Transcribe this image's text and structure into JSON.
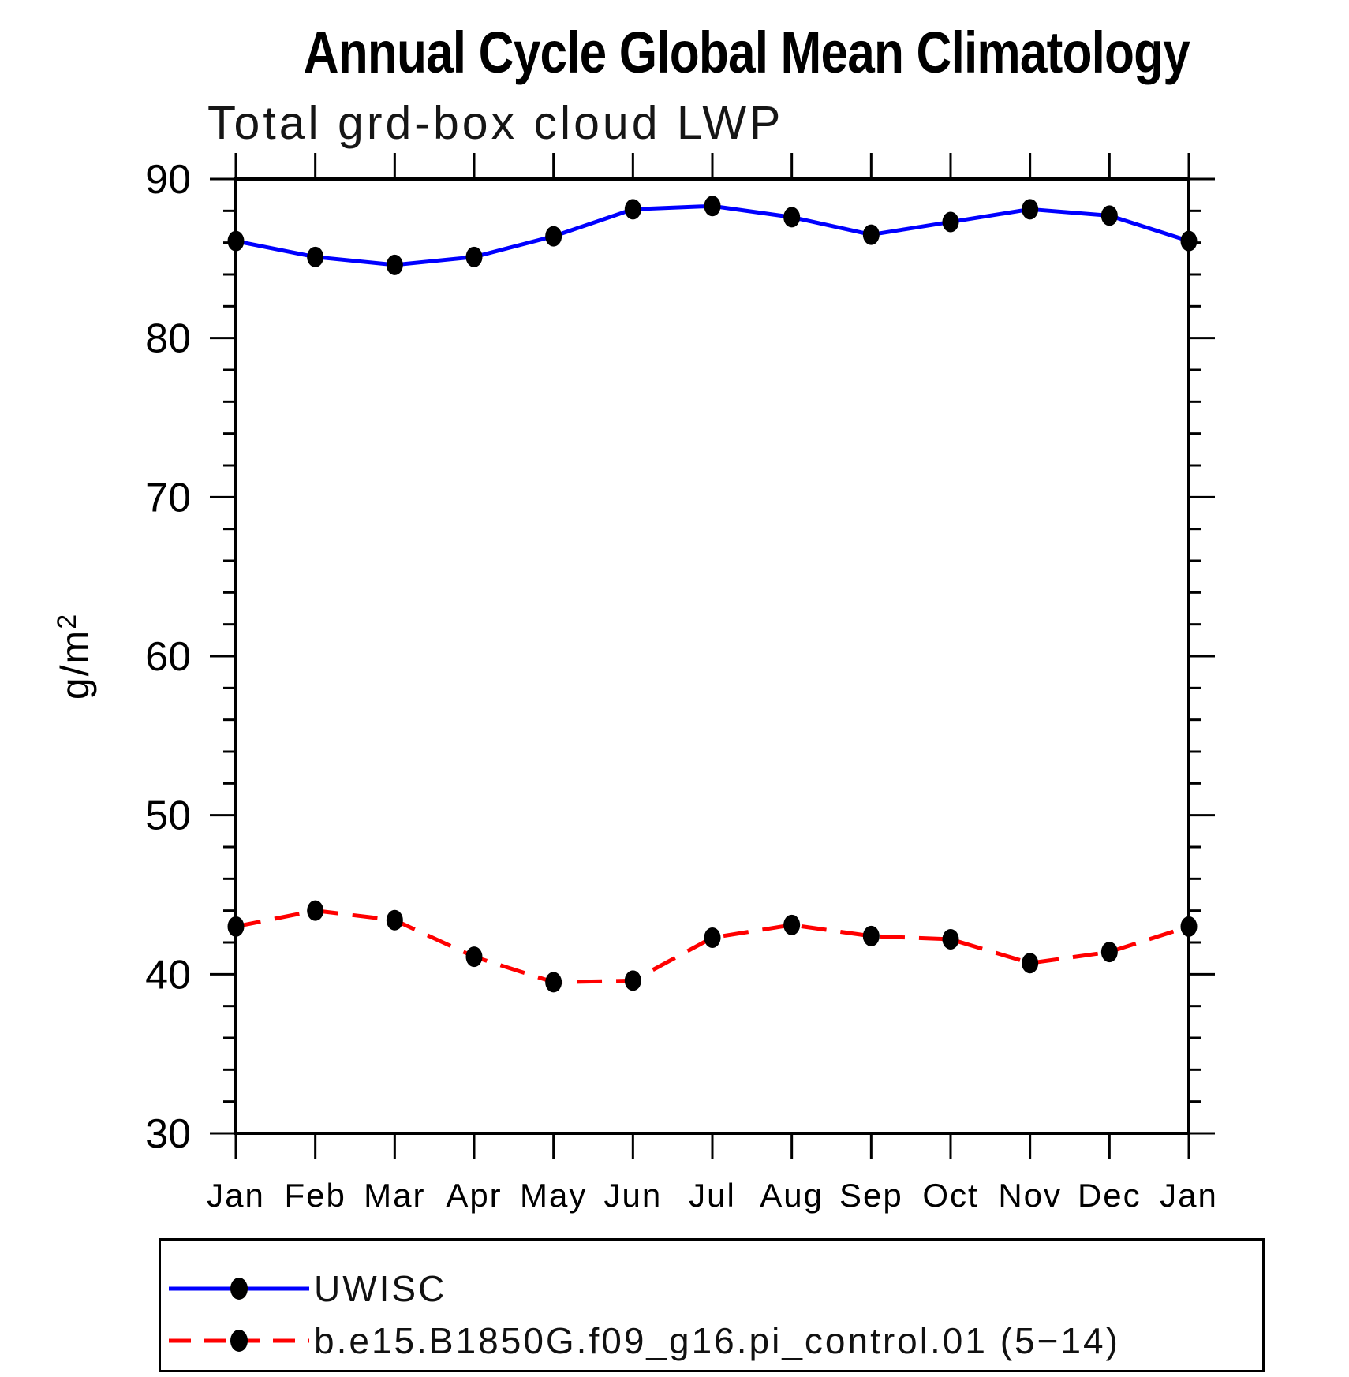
{
  "window": {
    "background": "#ffffff"
  },
  "chart_data": {
    "type": "line",
    "title": "Annual Cycle Global Mean Climatology",
    "subtitle": "Total grd-box cloud LWP",
    "ylabel_base": "g/m",
    "ylabel_exponent": "2",
    "categories": [
      "Jan",
      "Feb",
      "Mar",
      "Apr",
      "May",
      "Jun",
      "Jul",
      "Aug",
      "Sep",
      "Oct",
      "Nov",
      "Dec",
      "Jan"
    ],
    "ylim": [
      30,
      90
    ],
    "ytick_major": [
      30,
      40,
      50,
      60,
      70,
      80,
      90
    ],
    "ytick_minor_step": 2,
    "grid": false,
    "legend_position": "bottom-left",
    "axis_color": "#000000",
    "marker_color": "#000000",
    "marker_shape": "filled-circle",
    "series": [
      {
        "name": "UWISC",
        "color": "#0000ff",
        "line_style": "solid",
        "values": [
          86.1,
          85.1,
          84.6,
          85.1,
          86.4,
          88.1,
          88.3,
          87.6,
          86.5,
          87.3,
          88.1,
          87.7,
          86.1
        ]
      },
      {
        "name": "b.e15.B1850G.f09_g16.pi_control.01 (5−14)",
        "color": "#ff0000",
        "line_style": "dashed",
        "values": [
          43.0,
          44.0,
          43.4,
          41.1,
          39.5,
          39.6,
          42.3,
          43.1,
          42.4,
          42.2,
          40.7,
          41.4,
          43.0
        ]
      }
    ]
  }
}
